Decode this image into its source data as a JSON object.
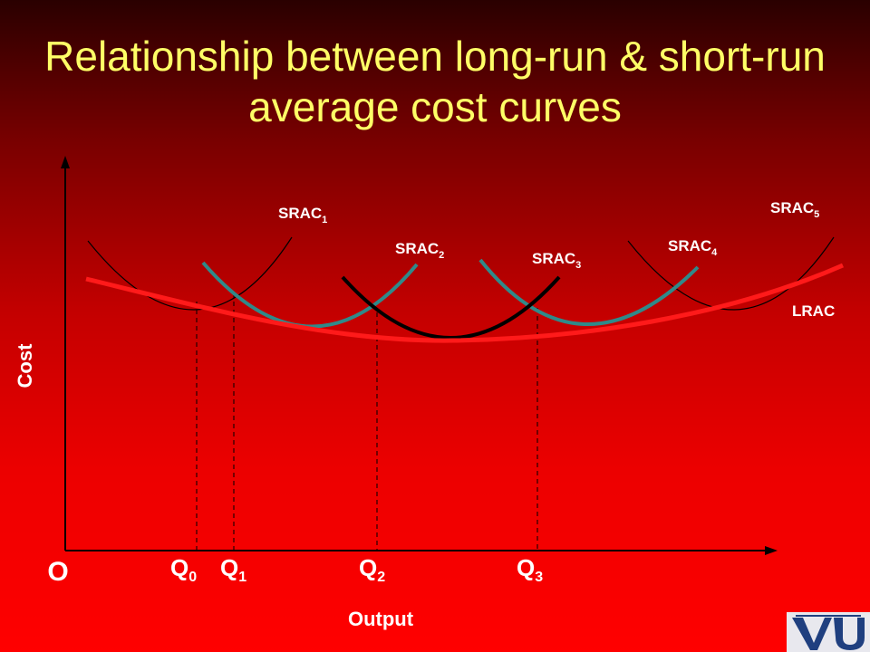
{
  "title": "Relationship between  long-run & short-run average cost curves",
  "axes": {
    "y_label": "Cost",
    "x_label": "Output",
    "origin": "O"
  },
  "curves": {
    "srac1": {
      "base": "SRAC",
      "sub": "1"
    },
    "srac2": {
      "base": "SRAC",
      "sub": "2"
    },
    "srac3": {
      "base": "SRAC",
      "sub": "3"
    },
    "srac4": {
      "base": "SRAC",
      "sub": "4"
    },
    "srac5": {
      "base": "SRAC",
      "sub": "5"
    },
    "lrac": "LRAC"
  },
  "quantities": {
    "q0": {
      "base": "Q",
      "sub": "0"
    },
    "q1": {
      "base": "Q",
      "sub": "1"
    },
    "q2": {
      "base": "Q",
      "sub": "2"
    },
    "q3": {
      "base": "Q",
      "sub": "3"
    }
  },
  "colors": {
    "lrac": "#ff1a1a",
    "srac_teal": "#2f8a8a",
    "srac_black": "#000000",
    "title": "#ffff66",
    "labels": "#ffffff"
  },
  "logo": "VU"
}
